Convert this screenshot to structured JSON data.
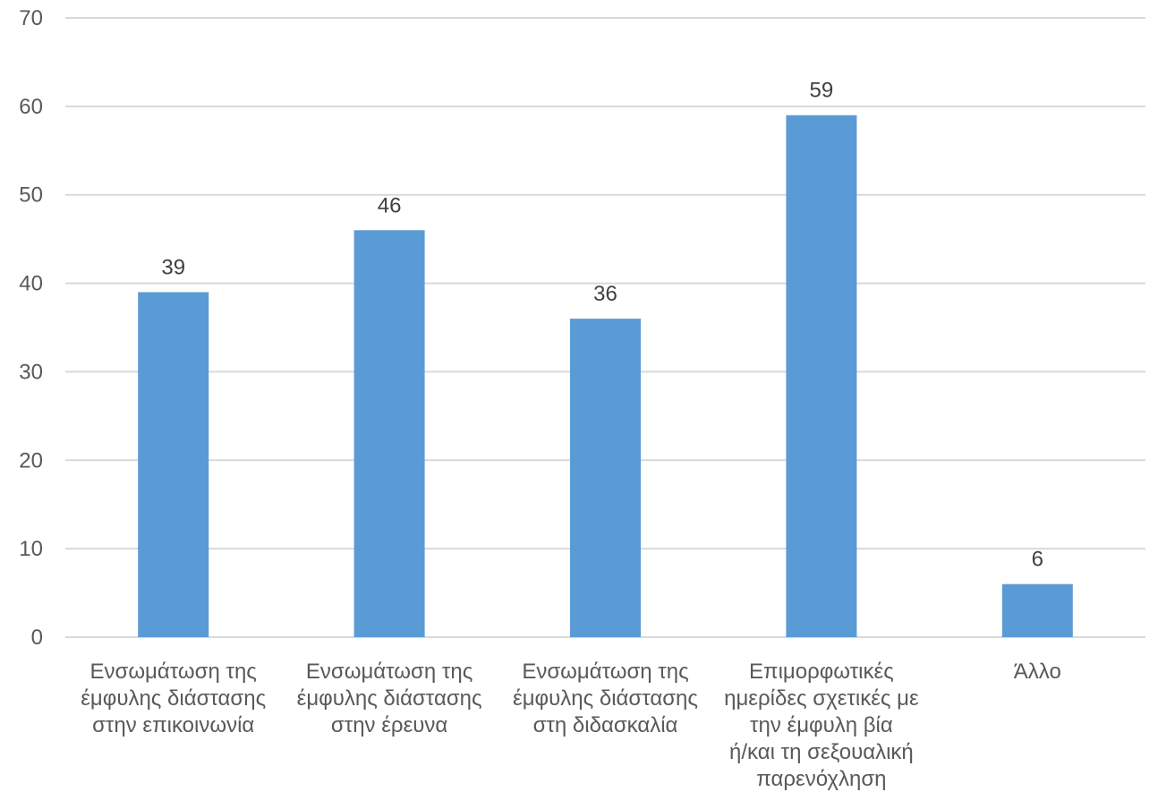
{
  "chart_data": {
    "type": "bar",
    "categories": [
      [
        "Ενσωμάτωση της",
        "έμφυλης διάστασης",
        "στην επικοινωνία"
      ],
      [
        "Ενσωμάτωση της",
        "έμφυλης διάστασης",
        "στην έρευνα"
      ],
      [
        "Ενσωμάτωση της",
        "έμφυλης διάστασης",
        "στη διδασκαλία"
      ],
      [
        "Επιμορφωτικές",
        "ημερίδες σχετικές με",
        "την έμφυλη βία",
        "ή/και τη σεξουαλική",
        "παρενόχληση"
      ],
      [
        "Άλλο"
      ]
    ],
    "values": [
      39,
      46,
      36,
      59,
      6
    ],
    "ylim": [
      0,
      70
    ],
    "yticks": [
      0,
      10,
      20,
      30,
      40,
      50,
      60,
      70
    ],
    "grid": true,
    "legend": "none",
    "bar_color": "#5b9bd5",
    "grid_color": "#d9d9d9"
  }
}
